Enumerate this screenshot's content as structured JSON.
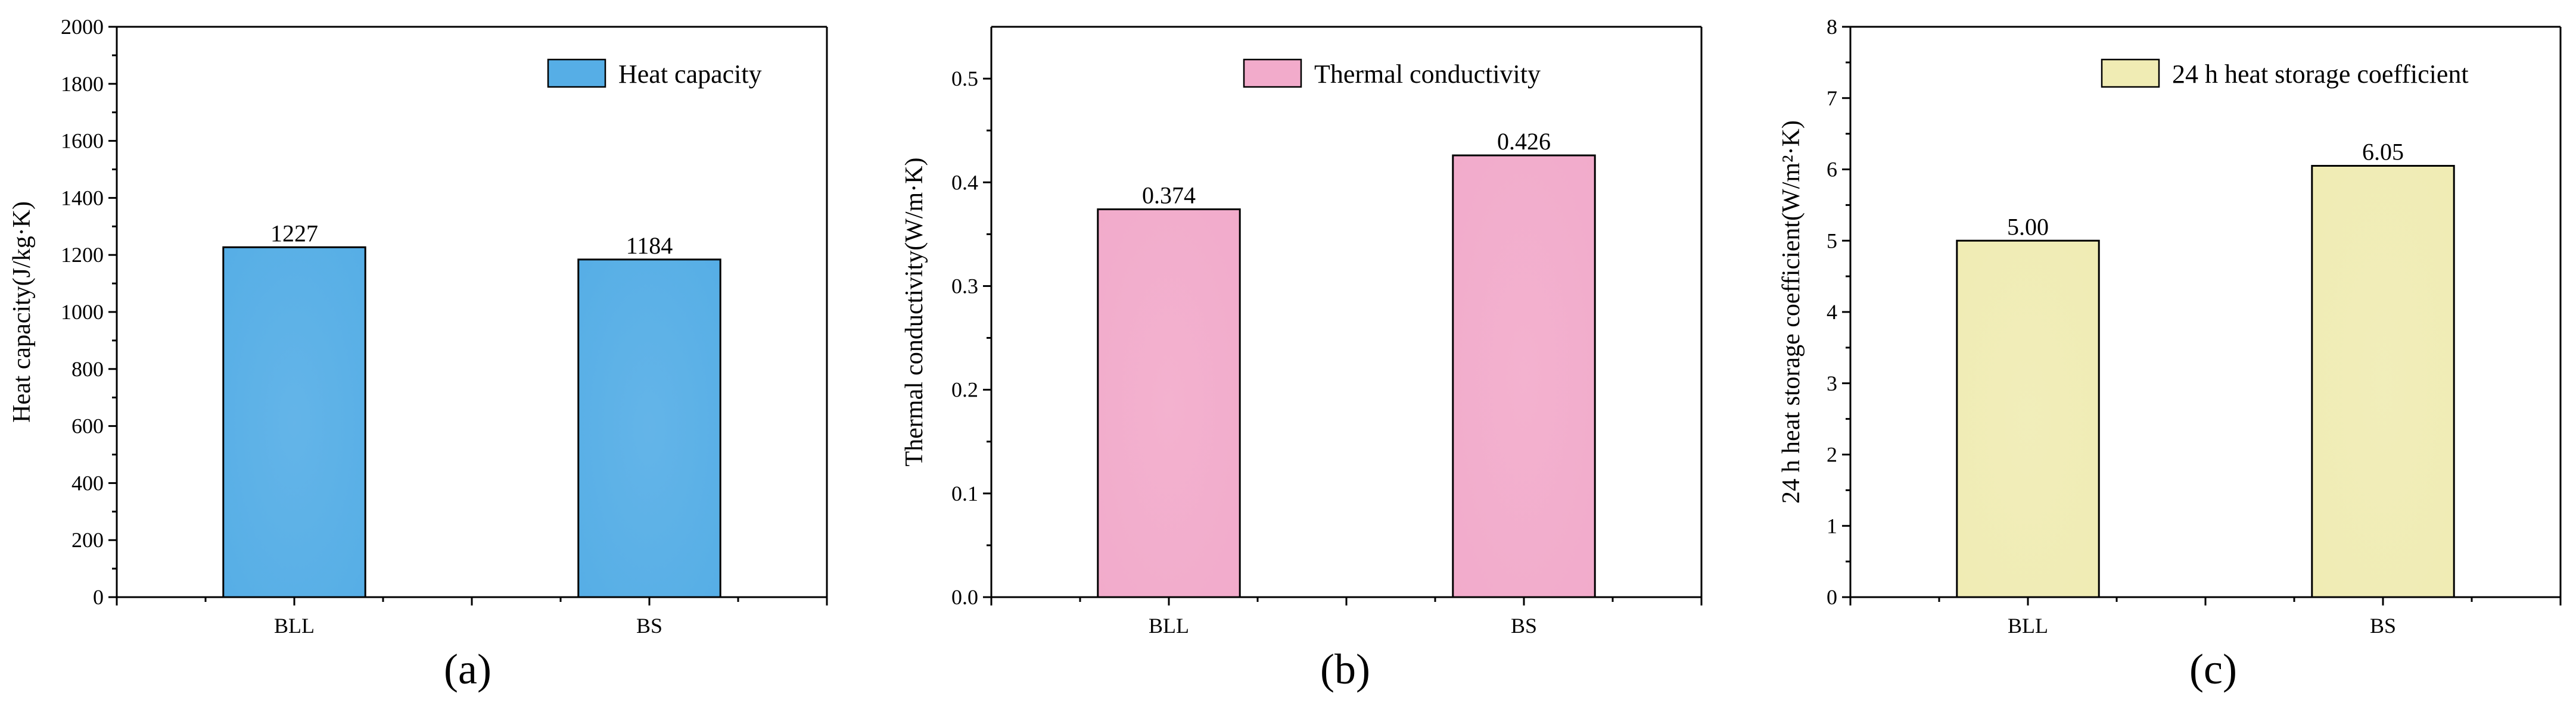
{
  "chart_data": [
    {
      "type": "bar",
      "panel_label": "(a)",
      "title": "",
      "xlabel": "",
      "ylabel": "Heat capacity(J/kg·K)",
      "categories": [
        "BLL",
        "BS"
      ],
      "series": [
        {
          "name": "Heat capacity",
          "values": [
            1227,
            1184
          ]
        }
      ],
      "value_labels": [
        "1227",
        "1184"
      ],
      "ylim": [
        0,
        2000
      ],
      "yticks": [
        0,
        200,
        400,
        600,
        800,
        1000,
        1200,
        1400,
        1600,
        1800,
        2000
      ],
      "ytick_labels": [
        "0",
        "200",
        "400",
        "600",
        "800",
        "1000",
        "1200",
        "1400",
        "1600",
        "1800",
        "2000"
      ],
      "color": "#56aee6",
      "legend_position": "top-right",
      "grid": false
    },
    {
      "type": "bar",
      "panel_label": "(b)",
      "title": "",
      "xlabel": "",
      "ylabel": "Thermal conductivity(W/m·K)",
      "categories": [
        "BLL",
        "BS"
      ],
      "series": [
        {
          "name": "Thermal conductivity",
          "values": [
            0.374,
            0.426
          ]
        }
      ],
      "value_labels": [
        "0.374",
        "0.426"
      ],
      "ylim": [
        0,
        0.55
      ],
      "yticks": [
        0.0,
        0.1,
        0.2,
        0.3,
        0.4,
        0.5
      ],
      "ytick_labels": [
        "0.0",
        "0.1",
        "0.2",
        "0.3",
        "0.4",
        "0.5"
      ],
      "color": "#f2abcb",
      "legend_position": "top-right",
      "grid": false
    },
    {
      "type": "bar",
      "panel_label": "(c)",
      "title": "",
      "xlabel": "",
      "ylabel": "24 h heat storage coefficient(W/m²·K)",
      "categories": [
        "BLL",
        "BS"
      ],
      "series": [
        {
          "name": "24 h heat storage coefficient",
          "values": [
            5.0,
            6.05
          ]
        }
      ],
      "value_labels": [
        "5.00",
        "6.05"
      ],
      "ylim": [
        0,
        8
      ],
      "yticks": [
        0,
        1,
        2,
        3,
        4,
        5,
        6,
        7,
        8
      ],
      "ytick_labels": [
        "0",
        "1",
        "2",
        "3",
        "4",
        "5",
        "6",
        "7",
        "8"
      ],
      "color": "#f0ecb4",
      "legend_position": "top-right",
      "grid": false
    }
  ]
}
